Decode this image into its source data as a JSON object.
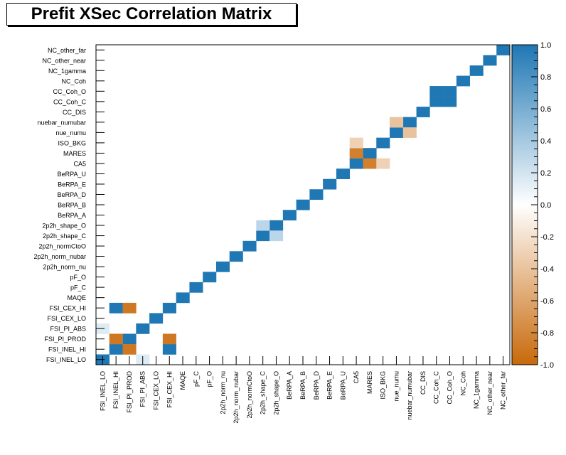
{
  "chart_data": {
    "type": "heatmap",
    "title": "Prefit XSec Correlation Matrix",
    "labels": [
      "FSI_INEL_LO",
      "FSI_INEL_HI",
      "FSI_PI_PROD",
      "FSI_PI_ABS",
      "FSI_CEX_LO",
      "FSI_CEX_HI",
      "MAQE",
      "pF_C",
      "pF_O",
      "2p2h_norm_nu",
      "2p2h_norm_nubar",
      "2p2h_normCtoO",
      "2p2h_shape_C",
      "2p2h_shape_O",
      "BeRPA_A",
      "BeRPA_B",
      "BeRPA_D",
      "BeRPA_E",
      "BeRPA_U",
      "CA5",
      "MARES",
      "ISO_BKG",
      "nue_numu",
      "nuebar_numubar",
      "CC_DIS",
      "CC_Coh_C",
      "CC_Coh_O",
      "NC_Coh",
      "NC_1gamma",
      "NC_other_near",
      "NC_other_far"
    ],
    "zlim": [
      -1.0,
      1.0
    ],
    "ztick_labels": [
      "1.0",
      "0.8",
      "0.6",
      "0.4",
      "0.2",
      "0.0",
      "-0.2",
      "-0.4",
      "-0.6",
      "-0.8",
      "-1.0"
    ],
    "ztick_values": [
      1.0,
      0.8,
      0.6,
      0.4,
      0.2,
      0.0,
      -0.2,
      -0.4,
      -0.6,
      -0.8,
      -1.0
    ],
    "colors": {
      "positive": "#1f77b4",
      "negative": "#c8690a",
      "zero": "#ffffff"
    },
    "off_diagonal": [
      {
        "x": 0,
        "y": 3,
        "value": 0.15
      },
      {
        "x": 3,
        "y": 0,
        "value": 0.15
      },
      {
        "x": 1,
        "y": 2,
        "value": -0.9
      },
      {
        "x": 2,
        "y": 1,
        "value": -0.9
      },
      {
        "x": 1,
        "y": 5,
        "value": 1.0
      },
      {
        "x": 5,
        "y": 1,
        "value": 1.0
      },
      {
        "x": 2,
        "y": 5,
        "value": -0.9
      },
      {
        "x": 5,
        "y": 2,
        "value": -0.9
      },
      {
        "x": 12,
        "y": 13,
        "value": 0.3
      },
      {
        "x": 13,
        "y": 12,
        "value": 0.3
      },
      {
        "x": 19,
        "y": 20,
        "value": -0.85
      },
      {
        "x": 20,
        "y": 19,
        "value": -0.85
      },
      {
        "x": 19,
        "y": 21,
        "value": -0.3
      },
      {
        "x": 21,
        "y": 19,
        "value": -0.3
      },
      {
        "x": 22,
        "y": 23,
        "value": -0.4
      },
      {
        "x": 23,
        "y": 22,
        "value": -0.4
      },
      {
        "x": 25,
        "y": 26,
        "value": 1.0
      },
      {
        "x": 26,
        "y": 25,
        "value": 1.0
      }
    ]
  }
}
